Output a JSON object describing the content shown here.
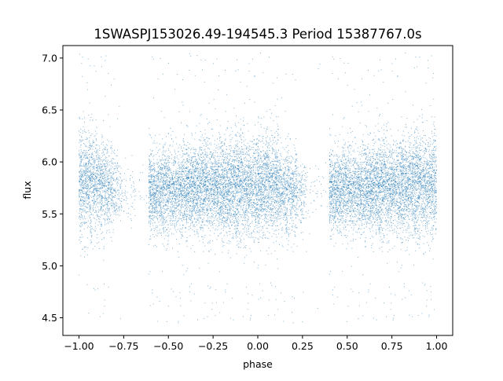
{
  "chart_data": {
    "type": "scatter",
    "title": "1SWASPJ153026.49-194545.3 Period 15387767.0s",
    "xlabel": "phase",
    "ylabel": "flux",
    "xlim": [
      -1.09,
      1.09
    ],
    "ylim": [
      4.33,
      7.12
    ],
    "x_ticks": [
      -1.0,
      -0.75,
      -0.5,
      -0.25,
      0.0,
      0.25,
      0.5,
      0.75,
      1.0
    ],
    "x_tick_labels": [
      "−1.00",
      "−0.75",
      "−0.50",
      "−0.25",
      "0.00",
      "0.25",
      "0.50",
      "0.75",
      "1.00"
    ],
    "y_ticks": [
      4.5,
      5.0,
      5.5,
      6.0,
      6.5,
      7.0
    ],
    "y_tick_labels": [
      "4.5",
      "5.0",
      "5.5",
      "6.0",
      "6.5",
      "7.0"
    ],
    "grid": false,
    "legend": "none",
    "marker_color": "#1f77b4",
    "series": [
      {
        "density_profile": {
          "description_free_note": "",
          "phase_bins": [
            [
              -1.0,
              -0.96,
              1.0,
              5.78,
              0.26
            ],
            [
              -0.96,
              -0.9,
              0.9,
              5.8,
              0.24
            ],
            [
              -0.9,
              -0.84,
              0.8,
              5.78,
              0.22
            ],
            [
              -0.84,
              -0.8,
              0.6,
              5.72,
              0.2
            ],
            [
              -0.8,
              -0.76,
              0.3,
              5.72,
              0.16
            ],
            [
              -0.76,
              -0.68,
              0.08,
              5.7,
              0.14
            ],
            [
              -0.68,
              -0.61,
              0.02,
              5.7,
              0.14
            ],
            [
              -0.61,
              -0.4,
              0.9,
              5.72,
              0.2
            ],
            [
              -0.4,
              -0.2,
              1.0,
              5.75,
              0.22
            ],
            [
              -0.2,
              0.0,
              1.0,
              5.75,
              0.24
            ],
            [
              0.0,
              0.12,
              1.0,
              5.78,
              0.24
            ],
            [
              0.12,
              0.22,
              0.7,
              5.72,
              0.2
            ],
            [
              0.22,
              0.27,
              0.3,
              5.7,
              0.16
            ],
            [
              0.27,
              0.36,
              0.05,
              5.7,
              0.14
            ],
            [
              0.36,
              0.4,
              0.02,
              5.7,
              0.14
            ],
            [
              0.4,
              0.6,
              0.9,
              5.72,
              0.2
            ],
            [
              0.6,
              0.8,
              1.0,
              5.75,
              0.22
            ],
            [
              0.8,
              1.0,
              1.0,
              5.78,
              0.24
            ]
          ]
        }
      }
    ]
  }
}
